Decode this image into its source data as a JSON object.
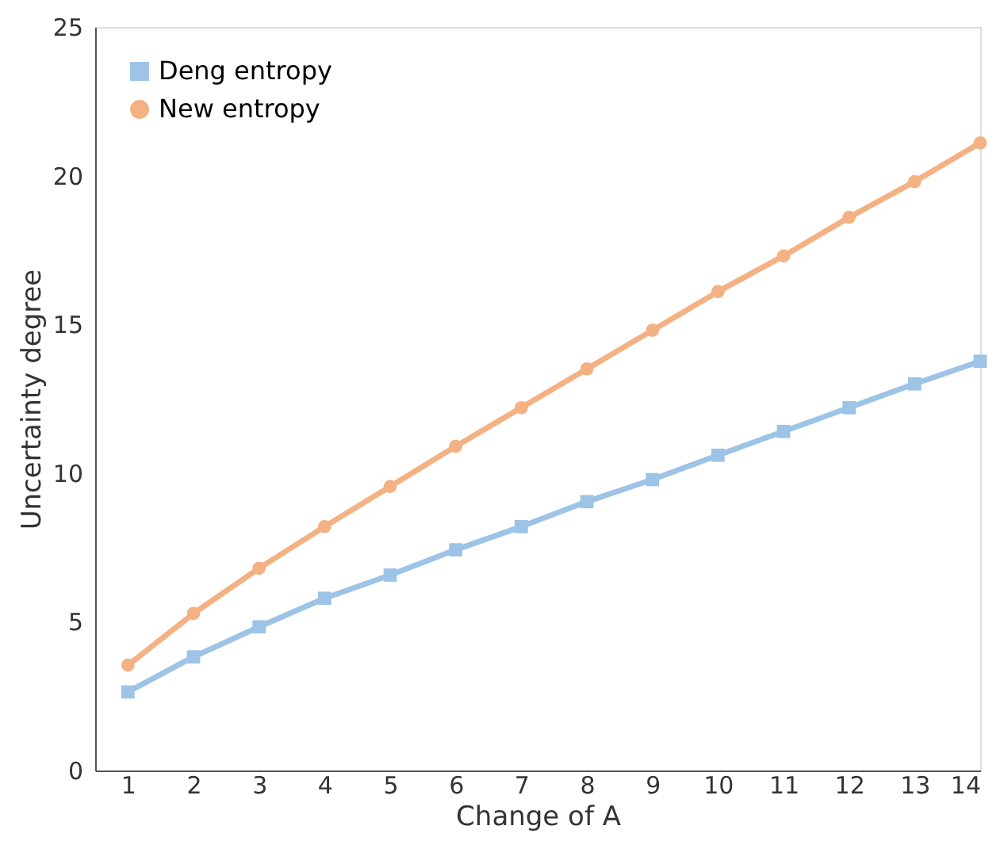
{
  "chart_data": {
    "type": "line",
    "xlabel": "Change of  A",
    "ylabel": "Uncertainty degree",
    "x": [
      1,
      2,
      3,
      4,
      5,
      6,
      7,
      8,
      9,
      10,
      11,
      12,
      13,
      14
    ],
    "series": [
      {
        "name": "Deng entropy",
        "color": "#9dc3e6",
        "marker": "square",
        "values": [
          2.64,
          3.82,
          4.83,
          5.79,
          6.57,
          7.42,
          8.2,
          9.04,
          9.78,
          10.6,
          11.4,
          12.2,
          13.0,
          13.76
        ]
      },
      {
        "name": "New entropy",
        "color": "#f4b183",
        "marker": "circle",
        "values": [
          3.54,
          5.28,
          6.8,
          8.2,
          9.55,
          10.9,
          12.2,
          13.5,
          14.8,
          16.1,
          17.3,
          18.6,
          19.8,
          21.1
        ]
      }
    ],
    "xlim": [
      0.5,
      14
    ],
    "xticks": [
      1,
      2,
      3,
      4,
      5,
      6,
      7,
      8,
      9,
      10,
      11,
      12,
      13,
      14
    ],
    "ylim": [
      0,
      25
    ],
    "yticks": [
      0,
      5,
      10,
      15,
      20,
      25
    ],
    "grid": false,
    "legend": "top left",
    "line_style": "solid"
  }
}
